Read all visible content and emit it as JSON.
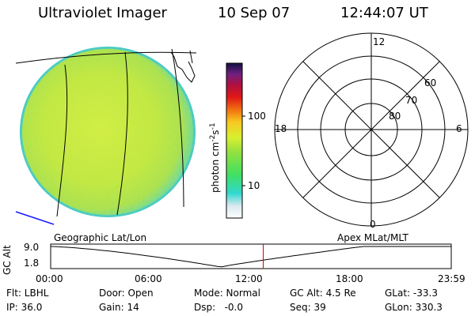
{
  "header": {
    "instrument": "Ultraviolet Imager",
    "date": "10 Sep 07",
    "time": "12:44:07 UT"
  },
  "colorbar": {
    "unit_label": "photon cm",
    "unit_exp1": "-2",
    "unit_mid": "s",
    "unit_exp2": "-1",
    "tick_100": "100",
    "tick_10": "10"
  },
  "polar": {
    "label_12": "12",
    "label_18": "18",
    "label_6": "6",
    "label_0": "0",
    "label_60": "60",
    "label_70": "70",
    "label_80": "80"
  },
  "timeline": {
    "left_title": "Geographic Lat/Lon",
    "right_title": "Apex MLat/MLT",
    "axis_label": "GC Alt",
    "y_top": "9.0",
    "y_bottom": "1.8",
    "x_ticks": [
      "00:00",
      "06:00",
      "12:00",
      "18:00",
      "23:59"
    ],
    "current_time_hours": 12.735,
    "marker_color": "#dd0000"
  },
  "info": {
    "flt": "Flt: LBHL",
    "ip": "IP: 36.0",
    "door": "Door: Open",
    "gain": "Gain: 14",
    "mode": "Mode: Normal",
    "dsp": "Dsp:   -0.0",
    "gc_alt": "GC Alt: 4.5 Re",
    "seq": "Seq: 39",
    "glat": "GLat: -33.3",
    "glon": "GLon: 330.3"
  },
  "colors": {
    "earth_fill": "#c6ec3a",
    "earth_edge": "#3ec8c8",
    "grid": "#000000",
    "coast": "#1a1aff"
  }
}
